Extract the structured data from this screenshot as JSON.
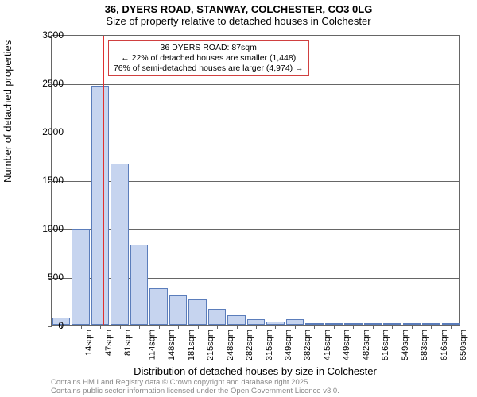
{
  "title": {
    "main": "36, DYERS ROAD, STANWAY, COLCHESTER, CO3 0LG",
    "sub": "Size of property relative to detached houses in Colchester"
  },
  "ylabel": "Number of detached properties",
  "xlabel": "Distribution of detached houses by size in Colchester",
  "footer": {
    "line1": "Contains HM Land Registry data © Crown copyright and database right 2025.",
    "line2": "Contains public sector information licensed under the Open Government Licence v3.0."
  },
  "chart": {
    "type": "bar",
    "ymax": 3000,
    "ytick_step": 500,
    "bar_fill": "#c6d4ef",
    "bar_stroke": "#5b7dbb",
    "background": "#ffffff",
    "grid_color": "#666666",
    "marker_color": "#e03030",
    "marker_index": 2.15,
    "categories": [
      "14sqm",
      "47sqm",
      "81sqm",
      "114sqm",
      "148sqm",
      "181sqm",
      "215sqm",
      "248sqm",
      "282sqm",
      "315sqm",
      "349sqm",
      "382sqm",
      "415sqm",
      "449sqm",
      "482sqm",
      "516sqm",
      "549sqm",
      "583sqm",
      "616sqm",
      "650sqm",
      "683sqm"
    ],
    "values": [
      70,
      980,
      2470,
      1660,
      830,
      380,
      300,
      260,
      160,
      100,
      60,
      30,
      60,
      15,
      15,
      10,
      10,
      10,
      5,
      5,
      5
    ]
  },
  "info_box": {
    "line1": "36 DYERS ROAD: 87sqm",
    "line2": "← 22% of detached houses are smaller (1,448)",
    "line3": "76% of semi-detached houses are larger (4,974) →",
    "border_color": "#d04040",
    "fontsize": 10.5
  }
}
